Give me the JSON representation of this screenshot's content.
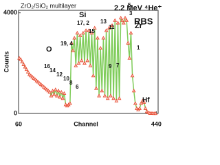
{
  "chart_data": {
    "type": "scatter",
    "title": "ZrO₂/SiO₂ multilayer",
    "subtitle": "2.2 MeV ⁴He⁺",
    "label": "RBS",
    "x_label": "Channel",
    "y_label": "Counts",
    "xlim": [
      60,
      445
    ],
    "ylim": [
      0,
      4100
    ],
    "xticks": [
      60,
      440
    ],
    "yticks": [
      0,
      4000
    ],
    "line_color": "#7fcc5a",
    "marker_color": "#e8442a",
    "annotations": [
      "16",
      "14",
      "12",
      "10",
      "8",
      "6",
      "O",
      "19, 4",
      "17, 2",
      "Si",
      "15",
      "13",
      "11",
      "9",
      "7",
      "5",
      "3",
      "Zr",
      "1",
      "Hf"
    ],
    "x": [
      62,
      66,
      70,
      74,
      78,
      82,
      86,
      90,
      94,
      98,
      102,
      106,
      110,
      114,
      118,
      122,
      126,
      130,
      134,
      138,
      142,
      146,
      150,
      154,
      158,
      162,
      166,
      170,
      174,
      178,
      182,
      186,
      190,
      194,
      198,
      202,
      206,
      210,
      214,
      218,
      222,
      226,
      230,
      234,
      238,
      242,
      246,
      250,
      254,
      258,
      262,
      266,
      270,
      274,
      278,
      282,
      286,
      290,
      294,
      298,
      302,
      306,
      310,
      314,
      318,
      322,
      326,
      330,
      334,
      338,
      342,
      346,
      350,
      354,
      358,
      362,
      366,
      370,
      374,
      378,
      382,
      386,
      390,
      394,
      398,
      402,
      406,
      410,
      414,
      418,
      422,
      426,
      430,
      434,
      438
    ],
    "values": [
      2200,
      2150,
      2050,
      1950,
      1850,
      1750,
      1650,
      1550,
      1500,
      1450,
      1400,
      1350,
      1300,
      1250,
      1200,
      1150,
      1100,
      1050,
      1000,
      950,
      900,
      850,
      700,
      900,
      750,
      950,
      700,
      900,
      650,
      850,
      600,
      800,
      350,
      300,
      350,
      400,
      2800,
      2500,
      3000,
      1900,
      3200,
      2000,
      3100,
      2100,
      3200,
      2000,
      3300,
      2100,
      3300,
      1900,
      3200,
      1500,
      3400,
      1000,
      3000,
      700,
      2600,
      900,
      3000,
      700,
      3300,
      600,
      3400,
      700,
      3500,
      600,
      3700,
      500,
      3600,
      600,
      3800,
      3700,
      3600,
      3800,
      3700,
      2800,
      2200,
      3200,
      1500,
      900,
      400,
      200,
      150,
      200,
      400,
      500,
      450,
      200,
      80,
      30,
      10,
      5,
      5,
      0,
      0
    ]
  }
}
